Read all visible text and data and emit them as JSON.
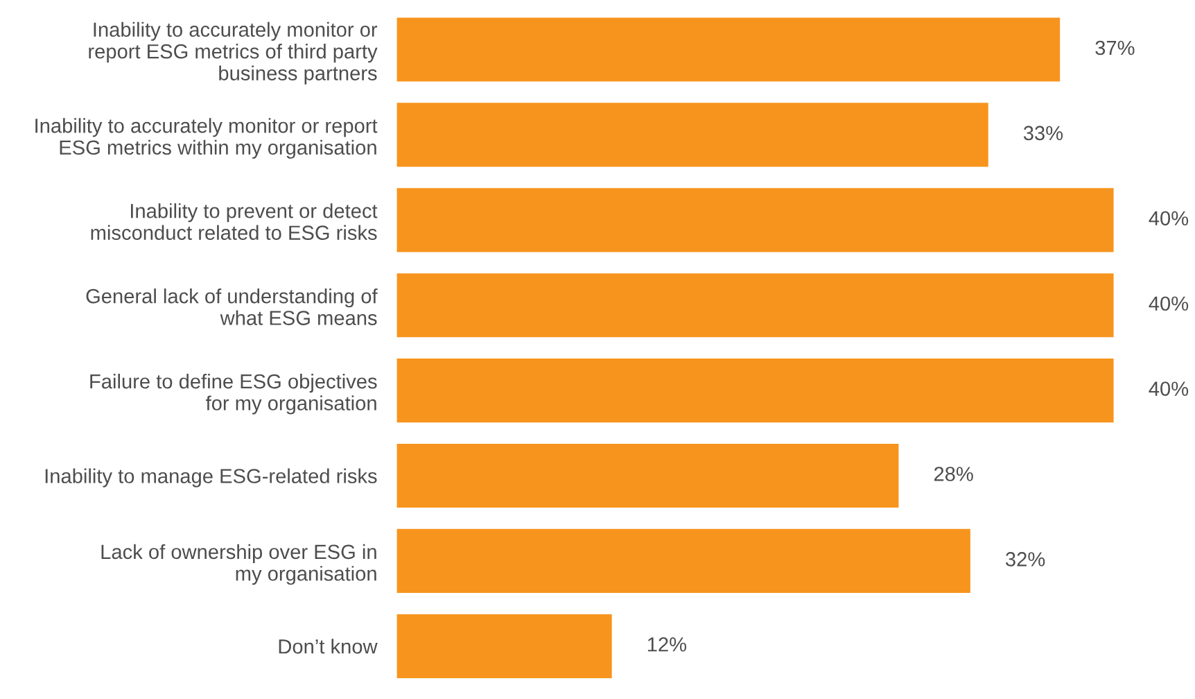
{
  "chart_data": {
    "type": "bar",
    "orientation": "horizontal",
    "categories": [
      "Inability to accurately monitor or\nreport ESG metrics of third party\nbusiness partners",
      "Inability to accurately monitor or report\nESG metrics within my organisation",
      "Inability to prevent or detect\nmisconduct related to ESG risks",
      "General lack of understanding of\nwhat ESG means",
      "Failure to define ESG objectives\nfor my organisation",
      "Inability to manage ESG-related risks",
      "Lack of ownership over ESG in\nmy organisation",
      "Don’t know"
    ],
    "values": [
      37,
      33,
      40,
      40,
      40,
      28,
      32,
      12
    ],
    "value_labels": [
      "37%",
      "33%",
      "40%",
      "40%",
      "40%",
      "28%",
      "32%",
      "12%"
    ],
    "color": "#f7941d",
    "grid": false,
    "legend": false,
    "tick_labels": "y"
  }
}
